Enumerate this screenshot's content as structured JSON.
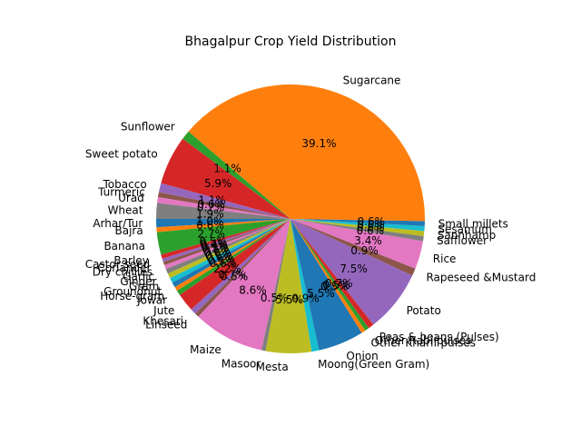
{
  "chart_data": {
    "type": "pie",
    "title": "Bhagalpur Crop Yield Distribution",
    "start_angle_deg": 180,
    "direction": "counterclockwise",
    "autopct_format": "%.1f%%",
    "colors": [
      "#1f77b4",
      "#ff7f0e",
      "#2ca02c",
      "#d62728",
      "#9467bd",
      "#8c564b",
      "#e377c2",
      "#7f7f7f",
      "#bcbd22",
      "#17becf"
    ],
    "slices": [
      {
        "label": "Arhar/Tur",
        "value": 1.0,
        "pct_label": "1.0%"
      },
      {
        "label": "Bajra",
        "value": 0.6,
        "pct_label": "0.6%"
      },
      {
        "label": "Banana",
        "value": 2.7,
        "pct_label": "2.7%"
      },
      {
        "label": "Barley",
        "value": 0.5,
        "pct_label": "0.5%"
      },
      {
        "label": "Castor seed",
        "value": 0.4,
        "pct_label": "0.4%"
      },
      {
        "label": "Coriander",
        "value": 0.4,
        "pct_label": "0.4%"
      },
      {
        "label": "Dry chillies",
        "value": 0.5,
        "pct_label": "0.5%"
      },
      {
        "label": "Garlic",
        "value": 0.6,
        "pct_label": "0.6%"
      },
      {
        "label": "Ginger",
        "value": 0.6,
        "pct_label": "0.6%"
      },
      {
        "label": "Gram",
        "value": 0.6,
        "pct_label": "0.6%"
      },
      {
        "label": "Groundnut",
        "value": 0.6,
        "pct_label": "0.6%"
      },
      {
        "label": "Horse-gram",
        "value": 0.5,
        "pct_label": "0.5%"
      },
      {
        "label": "Jowar",
        "value": 0.6,
        "pct_label": "0.6%"
      },
      {
        "label": "Jute",
        "value": 2.2,
        "pct_label": "2.2%"
      },
      {
        "label": "Khesari",
        "value": 0.7,
        "pct_label": "0.7%"
      },
      {
        "label": "Linseed",
        "value": 0.5,
        "pct_label": "0.5%"
      },
      {
        "label": "Maize",
        "value": 8.6,
        "pct_label": "8.6%"
      },
      {
        "label": "Masoor",
        "value": 0.5,
        "pct_label": "0.5%"
      },
      {
        "label": "Mesta",
        "value": 5.5,
        "pct_label": "5.5%"
      },
      {
        "label": "Moong(Green Gram)",
        "value": 0.9,
        "pct_label": "0.9%"
      },
      {
        "label": "Onion",
        "value": 5.5,
        "pct_label": "5.5%"
      },
      {
        "label": "Other Kharif pulses",
        "value": 0.5,
        "pct_label": "0.5%"
      },
      {
        "label": "Other Rabi pulses",
        "value": 0.5,
        "pct_label": "0.5%"
      },
      {
        "label": "Peas & beans (Pulses)",
        "value": 0.7,
        "pct_label": "0.7%"
      },
      {
        "label": "Potato",
        "value": 7.5,
        "pct_label": "7.5%"
      },
      {
        "label": "Rapeseed &Mustard",
        "value": 0.9,
        "pct_label": "0.9%"
      },
      {
        "label": "Rice",
        "value": 3.4,
        "pct_label": "3.4%"
      },
      {
        "label": "Safflower",
        "value": 0.6,
        "pct_label": "0.6%"
      },
      {
        "label": "Sannhamp",
        "value": 0.6,
        "pct_label": "0.6%"
      },
      {
        "label": "Sesamum",
        "value": 0.6,
        "pct_label": "0.6%"
      },
      {
        "label": "Small millets",
        "value": 0.6,
        "pct_label": "0.6%"
      },
      {
        "label": "Sugarcane",
        "value": 39.1,
        "pct_label": "39.1%"
      },
      {
        "label": "Sunflower",
        "value": 1.1,
        "pct_label": "1.1%"
      },
      {
        "label": "Sweet potato",
        "value": 5.9,
        "pct_label": "5.9%"
      },
      {
        "label": "Tobacco",
        "value": 1.1,
        "pct_label": "1.1%"
      },
      {
        "label": "Turmeric",
        "value": 0.6,
        "pct_label": "0.6%"
      },
      {
        "label": "Urad",
        "value": 0.7,
        "pct_label": "0.7%"
      },
      {
        "label": "Wheat",
        "value": 1.9,
        "pct_label": "1.9%"
      }
    ]
  }
}
